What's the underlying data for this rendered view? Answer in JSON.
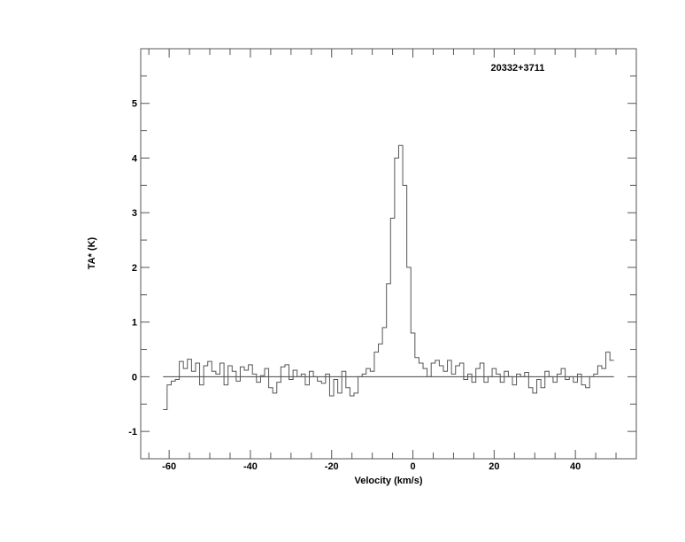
{
  "chart_data": {
    "type": "line",
    "style": "histogram-step",
    "title": "20332+3711",
    "xlabel": "Velocity (km/s)",
    "ylabel": "TA* (K)",
    "xlim": [
      -67,
      55
    ],
    "ylim": [
      -1.5,
      6
    ],
    "xticks": [
      -60,
      -40,
      -20,
      0,
      20,
      40
    ],
    "xticks_minor_step": 5,
    "yticks": [
      -1,
      0,
      1,
      2,
      3,
      4,
      5
    ],
    "yticks_minor_step": 0.5,
    "grid": false,
    "baseline": 0,
    "line_color": "#555555",
    "channel_width": 1.0,
    "x_start": -61.5,
    "values": [
      -0.6,
      -0.15,
      -0.08,
      -0.05,
      0.28,
      0.15,
      0.32,
      0.1,
      0.25,
      -0.15,
      0.2,
      0.28,
      0.1,
      0.05,
      0.25,
      -0.15,
      0.2,
      0.1,
      -0.08,
      0.18,
      0.12,
      0.22,
      0.05,
      -0.1,
      0.02,
      0.15,
      -0.2,
      -0.3,
      -0.1,
      0.18,
      0.22,
      -0.05,
      0.12,
      0.0,
      0.05,
      -0.15,
      0.1,
      0.0,
      -0.08,
      -0.12,
      0.05,
      -0.35,
      -0.05,
      -0.3,
      0.1,
      -0.2,
      -0.35,
      -0.3,
      0.0,
      0.05,
      0.15,
      0.1,
      0.45,
      0.6,
      0.9,
      1.7,
      2.9,
      4.0,
      4.23,
      3.5,
      2.0,
      0.8,
      0.35,
      0.25,
      0.15,
      0.0,
      0.25,
      0.3,
      0.2,
      0.1,
      0.3,
      0.05,
      0.2,
      0.25,
      -0.05,
      0.05,
      -0.1,
      0.15,
      0.25,
      -0.1,
      0.0,
      0.15,
      0.05,
      -0.1,
      0.1,
      0.0,
      -0.15,
      0.05,
      0.0,
      0.08,
      -0.2,
      -0.3,
      -0.05,
      -0.2,
      0.1,
      0.0,
      -0.1,
      0.05,
      0.15,
      -0.05,
      0.0,
      -0.1,
      0.05,
      -0.15,
      -0.2,
      0.0,
      0.05,
      0.2,
      0.15,
      0.45,
      0.3
    ]
  }
}
